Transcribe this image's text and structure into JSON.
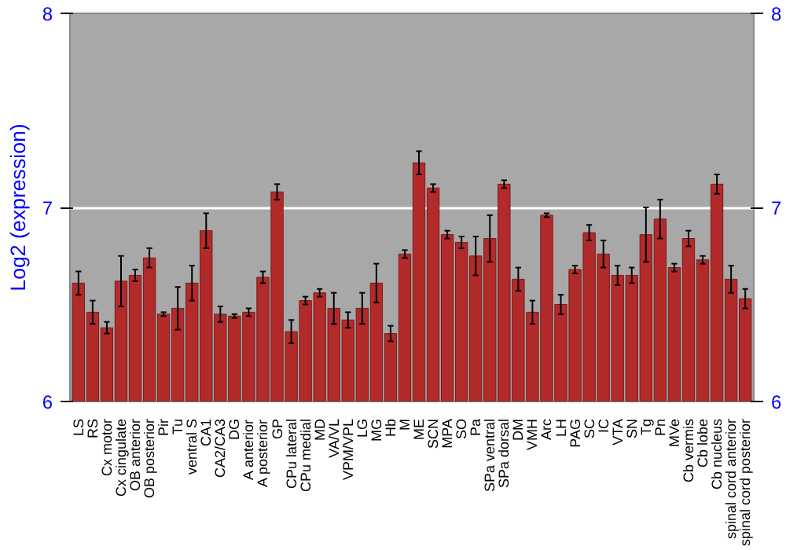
{
  "chart_data": {
    "type": "bar",
    "ylabel": "Log2 (expression)",
    "categories": [
      "LS",
      "RS",
      "Cx motor",
      "Cx cingulate",
      "OB anterior",
      "OB posterior",
      "Pir",
      "Tu",
      "ventral S",
      "CA1",
      "CA2/CA3",
      "DG",
      "A anterior",
      "A posterior",
      "GP",
      "CPu lateral",
      "CPu medial",
      "MD",
      "VA/VL",
      "VPM/VPL",
      "LG",
      "MG",
      "Hb",
      "M",
      "ME",
      "SCN",
      "MPA",
      "SO",
      "Pa",
      "SPa ventral",
      "SPa dorsal",
      "DM",
      "VMH",
      "Arc",
      "LH",
      "PAG",
      "SC",
      "IC",
      "VTA",
      "SN",
      "Tg",
      "Pn",
      "MVe",
      "Cb vermis",
      "Cb lobe",
      "Cb nucleus",
      "spinal cord anterior",
      "spinal cord posterior"
    ],
    "values": [
      6.61,
      6.46,
      6.38,
      6.62,
      6.65,
      6.74,
      6.45,
      6.48,
      6.61,
      6.88,
      6.45,
      6.44,
      6.46,
      6.64,
      7.08,
      6.36,
      6.52,
      6.56,
      6.48,
      6.42,
      6.48,
      6.61,
      6.35,
      6.76,
      7.23,
      7.1,
      6.86,
      6.82,
      6.75,
      6.84,
      7.12,
      6.63,
      6.46,
      6.96,
      6.5,
      6.68,
      6.87,
      6.76,
      6.65,
      6.65,
      6.86,
      6.94,
      6.69,
      6.84,
      6.73,
      7.12,
      6.63,
      6.53
    ],
    "errors": [
      0.06,
      0.06,
      0.03,
      0.13,
      0.03,
      0.05,
      0.01,
      0.11,
      0.09,
      0.09,
      0.04,
      0.01,
      0.02,
      0.03,
      0.04,
      0.06,
      0.02,
      0.02,
      0.08,
      0.04,
      0.08,
      0.1,
      0.04,
      0.02,
      0.06,
      0.02,
      0.02,
      0.03,
      0.1,
      0.12,
      0.02,
      0.06,
      0.06,
      0.01,
      0.05,
      0.02,
      0.04,
      0.07,
      0.05,
      0.04,
      0.14,
      0.1,
      0.02,
      0.04,
      0.02,
      0.05,
      0.07,
      0.05
    ],
    "color": "#b22a2a",
    "ylim": [
      6,
      8
    ],
    "yticks": [
      6,
      7,
      8
    ],
    "y2lim": [
      6,
      8
    ],
    "y2ticks": [
      6,
      7,
      8
    ],
    "grid": "y"
  }
}
